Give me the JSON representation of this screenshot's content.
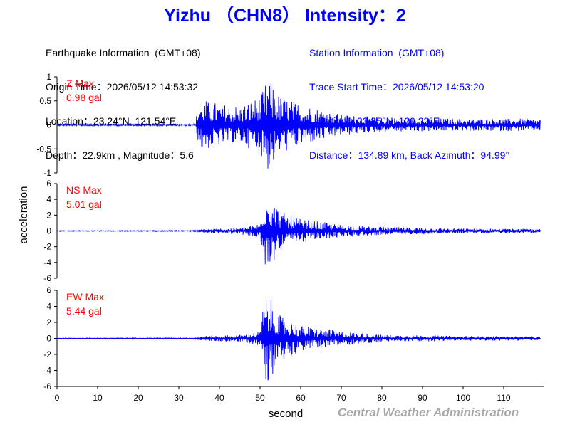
{
  "header": {
    "title": "Yizhu （CHN8） Intensity：2",
    "earthquake": {
      "heading": "Earthquake Information  (GMT+08)",
      "origin_time": "Origin Time：2026/05/12 14:53:32",
      "location": "Location：23.24°N, 121.54°E",
      "depth_magnitude": "Depth：22.9km , Magnitude：5.6"
    },
    "station": {
      "heading": "Station Information  (GMT+08)",
      "trace_start": "Trace Start Time：2026/05/12 14:53:20",
      "location": "Location：23.35°N, 120.22°E",
      "distance_azimuth": "Distance：134.89 km, Back Azimuth：94.99°"
    }
  },
  "footer": {
    "credit": "Central Weather Administration"
  },
  "colors": {
    "trace": "#0000ff",
    "max_label": "#ff0000",
    "title": "#0000ff",
    "credit": "#a8a8a8"
  },
  "chart_data": {
    "type": "line",
    "xlabel": "second",
    "ylabel": "acceleration",
    "xlim": [
      0,
      120
    ],
    "xticks": [
      "0",
      "10",
      "20",
      "30",
      "40",
      "50",
      "60",
      "70",
      "80",
      "90",
      "100",
      "110"
    ],
    "grid": false,
    "panels": [
      {
        "name": "Z",
        "max_label": "Z Max",
        "max_value": "0.98 gal",
        "ylim": [
          -1,
          1
        ],
        "yticks": [
          "1",
          "0.5",
          "0",
          "-0.5",
          "-1"
        ],
        "envelope": [
          [
            0,
            0.02
          ],
          [
            34,
            0.02
          ],
          [
            35,
            0.55
          ],
          [
            40,
            0.45
          ],
          [
            45,
            0.4
          ],
          [
            50,
            0.6
          ],
          [
            52,
            0.98
          ],
          [
            55,
            0.6
          ],
          [
            60,
            0.45
          ],
          [
            70,
            0.22
          ],
          [
            80,
            0.15
          ],
          [
            100,
            0.13
          ],
          [
            119,
            0.13
          ]
        ]
      },
      {
        "name": "NS",
        "max_label": "NS Max",
        "max_value": "5.01 gal",
        "ylim": [
          -6,
          6
        ],
        "yticks": [
          "6",
          "4",
          "2",
          "0",
          "-2",
          "-4",
          "-6"
        ],
        "envelope": [
          [
            0,
            0.05
          ],
          [
            34,
            0.07
          ],
          [
            36,
            0.25
          ],
          [
            45,
            0.4
          ],
          [
            50,
            1.0
          ],
          [
            51,
            4.8
          ],
          [
            52,
            5.01
          ],
          [
            55,
            2.5
          ],
          [
            60,
            1.5
          ],
          [
            70,
            0.8
          ],
          [
            80,
            0.5
          ],
          [
            100,
            0.3
          ],
          [
            119,
            0.25
          ]
        ]
      },
      {
        "name": "EW",
        "max_label": "EW Max",
        "max_value": "5.44 gal",
        "ylim": [
          -6,
          6
        ],
        "yticks": [
          "6",
          "4",
          "2",
          "0",
          "-2",
          "-4",
          "-6"
        ],
        "envelope": [
          [
            0,
            0.05
          ],
          [
            34,
            0.07
          ],
          [
            36,
            0.3
          ],
          [
            45,
            0.45
          ],
          [
            50,
            0.9
          ],
          [
            51,
            5.0
          ],
          [
            52,
            5.44
          ],
          [
            55,
            2.8
          ],
          [
            60,
            1.6
          ],
          [
            70,
            0.9
          ],
          [
            80,
            0.45
          ],
          [
            100,
            0.3
          ],
          [
            119,
            0.25
          ]
        ]
      }
    ]
  }
}
